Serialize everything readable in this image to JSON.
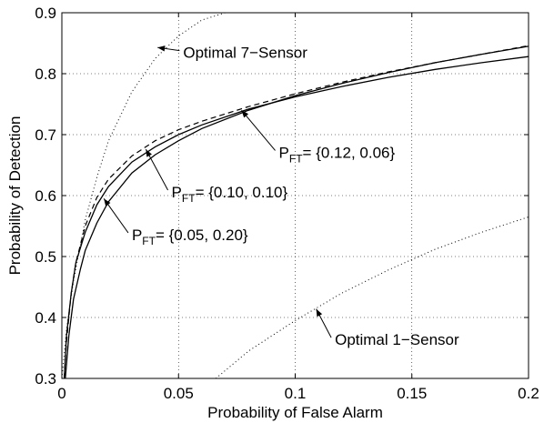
{
  "chart_data": {
    "type": "line",
    "title": "",
    "xlabel": "Probability of False Alarm",
    "ylabel": "Probability of Detection",
    "xlim": [
      0,
      0.2
    ],
    "ylim": [
      0.3,
      0.9
    ],
    "grid": true,
    "xticks": [
      0,
      0.05,
      0.1,
      0.15,
      0.2
    ],
    "xtick_labels": [
      "0",
      "0.05",
      "0.1",
      "0.15",
      "0.2"
    ],
    "yticks": [
      0.3,
      0.4,
      0.5,
      0.6,
      0.7,
      0.8,
      0.9
    ],
    "ytick_labels": [
      "0.3",
      "0.4",
      "0.5",
      "0.6",
      "0.7",
      "0.8",
      "0.9"
    ],
    "series": [
      {
        "style": "dotted",
        "x": [
          0.0,
          0.002,
          0.005,
          0.01,
          0.015,
          0.02,
          0.03,
          0.04,
          0.05,
          0.06,
          0.07
        ],
        "y": [
          0.3,
          0.38,
          0.46,
          0.56,
          0.63,
          0.69,
          0.77,
          0.825,
          0.862,
          0.888,
          0.9
        ]
      },
      {
        "style": "dotted",
        "x": [
          0.066,
          0.08,
          0.1,
          0.12,
          0.14,
          0.16,
          0.18,
          0.2
        ],
        "y": [
          0.3,
          0.345,
          0.395,
          0.44,
          0.478,
          0.512,
          0.54,
          0.565
        ]
      },
      {
        "style": "solid",
        "x": [
          0.001,
          0.002,
          0.004,
          0.006,
          0.01,
          0.015,
          0.02,
          0.03,
          0.04,
          0.05,
          0.06,
          0.08,
          0.1,
          0.12,
          0.14,
          0.16,
          0.18,
          0.2
        ],
        "y": [
          0.3,
          0.37,
          0.44,
          0.49,
          0.54,
          0.585,
          0.615,
          0.655,
          0.68,
          0.7,
          0.716,
          0.742,
          0.762,
          0.779,
          0.794,
          0.807,
          0.818,
          0.828
        ]
      },
      {
        "style": "solid",
        "x": [
          0.0015,
          0.003,
          0.005,
          0.008,
          0.01,
          0.015,
          0.02,
          0.03,
          0.04,
          0.05,
          0.06,
          0.08,
          0.1,
          0.12,
          0.14,
          0.16,
          0.18,
          0.2
        ],
        "y": [
          0.3,
          0.37,
          0.43,
          0.48,
          0.51,
          0.555,
          0.59,
          0.637,
          0.667,
          0.69,
          0.71,
          0.74,
          0.764,
          0.784,
          0.802,
          0.818,
          0.832,
          0.845
        ]
      },
      {
        "style": "dashed",
        "x": [
          0.001,
          0.002,
          0.004,
          0.006,
          0.01,
          0.015,
          0.02,
          0.03,
          0.04,
          0.05,
          0.06,
          0.08,
          0.1,
          0.12,
          0.14,
          0.16,
          0.18,
          0.2
        ],
        "y": [
          0.3,
          0.36,
          0.44,
          0.49,
          0.55,
          0.597,
          0.627,
          0.665,
          0.69,
          0.708,
          0.722,
          0.746,
          0.767,
          0.786,
          0.803,
          0.818,
          0.832,
          0.846
        ]
      }
    ],
    "annotations": [
      {
        "text": "Optimal 7−Sensor",
        "x": 0.052,
        "y": 0.826,
        "arrow_to": [
          0.041,
          0.843
        ]
      },
      {
        "text": "Optimal 1−Sensor",
        "x": 0.117,
        "y": 0.355,
        "arrow_to": [
          0.109,
          0.414
        ]
      },
      {
        "main": "P",
        "sub": "FT",
        "text": "= {0.12, 0.06}",
        "x": 0.093,
        "y": 0.662,
        "arrow_to": [
          0.077,
          0.74
        ]
      },
      {
        "main": "P",
        "sub": "FT",
        "text": "= {0.10, 0.10}",
        "x": 0.047,
        "y": 0.597,
        "arrow_to": [
          0.036,
          0.676
        ]
      },
      {
        "main": "P",
        "sub": "FT",
        "text": "= {0.05, 0.20}",
        "x": 0.03,
        "y": 0.527,
        "arrow_to": [
          0.018,
          0.595
        ]
      }
    ]
  }
}
